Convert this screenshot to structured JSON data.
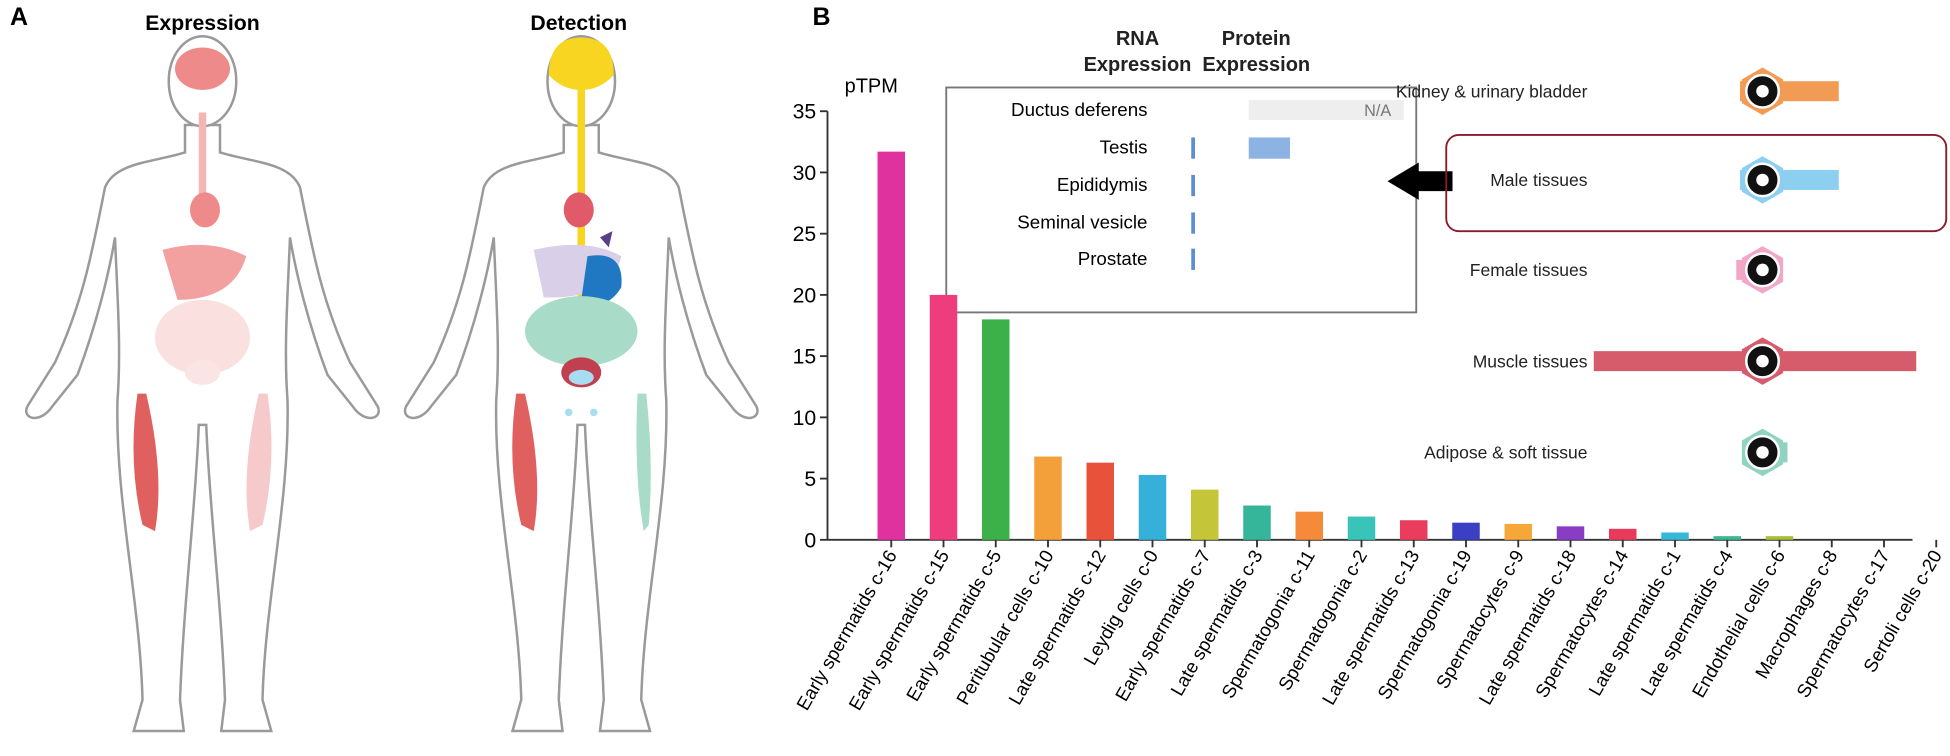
{
  "panels": {
    "a_label": "A",
    "b_label": "B",
    "expression_title": "Expression",
    "detection_title": "Detection"
  },
  "chart_data": [
    {
      "type": "bar",
      "ylabel": "pTPM",
      "categories": [
        "Early spermatids c-16",
        "Early spermatids c-15",
        "Early spermatids c-5",
        "Peritubular cells c-10",
        "Late spermatids c-12",
        "Leydig cells c-0",
        "Early spermatids c-7",
        "Late spermatids c-3",
        "Spermatogonia c-11",
        "Spermatogonia c-2",
        "Late spermatids c-13",
        "Spermatogonia c-19",
        "Spermatocytes c-9",
        "Late spermatids c-18",
        "Spermatocytes c-14",
        "Late spermatids c-1",
        "Late spermatids c-4",
        "Endothelial cells c-6",
        "Macrophages c-8",
        "Spermatocytes c-17",
        "Sertoli cells c-20"
      ],
      "values": [
        31.7,
        20.0,
        18.0,
        6.8,
        6.3,
        5.3,
        4.1,
        2.8,
        2.3,
        1.9,
        1.6,
        1.4,
        1.3,
        1.1,
        0.9,
        0.6,
        0.3,
        0.3,
        0,
        0,
        0
      ],
      "colors": [
        "#e0329f",
        "#ef3c7c",
        "#3cb14a",
        "#f4a03a",
        "#e8523a",
        "#35b0d8",
        "#c5c539",
        "#35b59a",
        "#f58a3a",
        "#38c4b8",
        "#ea3d5e",
        "#3a3fc4",
        "#f5a838",
        "#8a3dc4",
        "#e83a5a",
        "#38b8d8",
        "#3ab890",
        "#a5c038",
        "#e0329f",
        "#35b0d8",
        "#3cb14a"
      ],
      "ylim": [
        0,
        35
      ],
      "yticks": [
        0,
        5,
        10,
        15,
        20,
        25,
        30,
        35
      ]
    },
    {
      "type": "inset",
      "categories": [
        "Ductus deferens",
        "Testis",
        "Epididymis",
        "Seminal vesicle",
        "Prostate"
      ],
      "series": [
        {
          "name": "RNA Expression",
          "color": "#5b8fd0",
          "values": [
            null,
            1,
            1,
            1,
            1
          ]
        },
        {
          "name": "Protein Expression",
          "color": "#8db3e2",
          "values": [
            null,
            11,
            null,
            null,
            null
          ]
        }
      ],
      "na_label": "N/A"
    },
    {
      "type": "tissue",
      "categories": [
        "Kidney & urinary bladder",
        "Male tissues",
        "Female tissues",
        "Muscle tissues",
        "Adipose & soft tissue"
      ],
      "left": [
        3,
        3,
        6,
        120,
        0
      ],
      "right": [
        46,
        46,
        0,
        108,
        5
      ],
      "colors": [
        "#f29b55",
        "#8ccff0",
        "#f2a6c8",
        "#d65c6c",
        "#8fd3c0"
      ]
    }
  ]
}
